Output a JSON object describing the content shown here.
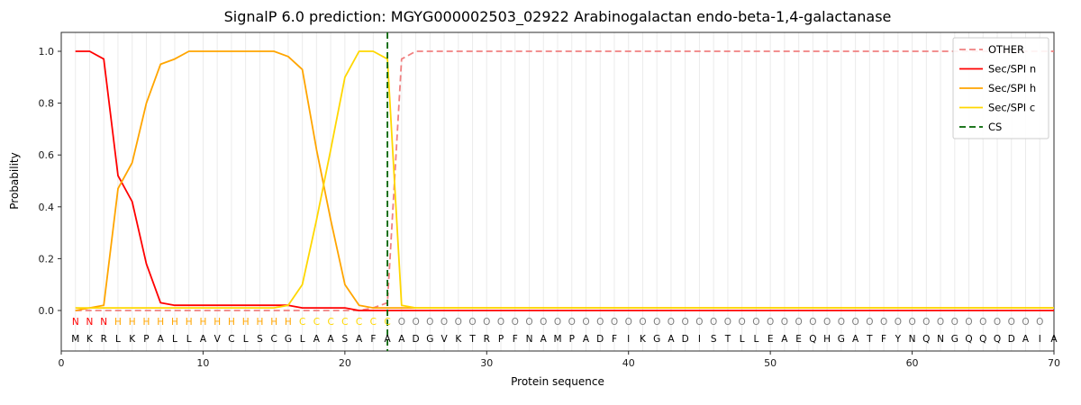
{
  "chart_data": {
    "type": "line",
    "title": "SignalP 6.0 prediction: MGYG000002503_02922 Arabinogalactan endo-beta-1,4-galactanase",
    "xlabel": "Protein sequence",
    "ylabel": "Probability",
    "xlim": [
      0,
      70
    ],
    "ylim": [
      -0.15,
      1.07
    ],
    "x_ticks": [
      0,
      10,
      20,
      30,
      40,
      50,
      60,
      70
    ],
    "y_ticks": [
      0.0,
      0.2,
      0.4,
      0.6,
      0.8,
      1.0
    ],
    "grid": "vertical-per-residue",
    "legend_position": "top-right",
    "colors": {
      "grid": "#ebebeb",
      "frame": "#2b2b2b",
      "tick_text": "#1a1a1a",
      "sequence_text": "#000000",
      "legend_border": "#cccccc"
    },
    "x": [
      1,
      2,
      3,
      4,
      5,
      6,
      7,
      8,
      9,
      10,
      11,
      12,
      13,
      14,
      15,
      16,
      17,
      18,
      19,
      20,
      21,
      22,
      23,
      24,
      25,
      26,
      27,
      28,
      29,
      30,
      31,
      32,
      33,
      34,
      35,
      36,
      37,
      38,
      39,
      40,
      41,
      42,
      43,
      44,
      45,
      46,
      47,
      48,
      49,
      50,
      51,
      52,
      53,
      54,
      55,
      56,
      57,
      58,
      59,
      60,
      61,
      62,
      63,
      64,
      65,
      66,
      67,
      68,
      69,
      70
    ],
    "series": [
      {
        "name": "OTHER",
        "color": "#f08080",
        "dash": "7 4",
        "values": [
          0,
          0,
          0,
          0,
          0,
          0,
          0,
          0,
          0,
          0,
          0,
          0,
          0,
          0,
          0,
          0,
          0,
          0,
          0,
          0,
          0,
          0.01,
          0.03,
          0.97,
          1,
          1,
          1,
          1,
          1,
          1,
          1,
          1,
          1,
          1,
          1,
          1,
          1,
          1,
          1,
          1,
          1,
          1,
          1,
          1,
          1,
          1,
          1,
          1,
          1,
          1,
          1,
          1,
          1,
          1,
          1,
          1,
          1,
          1,
          1,
          1,
          1,
          1,
          1,
          1,
          1,
          1,
          1,
          1,
          1,
          1
        ]
      },
      {
        "name": "Sec/SPI n",
        "color": "#ff0000",
        "dash": null,
        "values": [
          1,
          1,
          0.97,
          0.52,
          0.42,
          0.18,
          0.03,
          0.02,
          0.02,
          0.02,
          0.02,
          0.02,
          0.02,
          0.02,
          0.02,
          0.02,
          0.01,
          0.01,
          0.01,
          0.01,
          0,
          0,
          0,
          0,
          0,
          0,
          0,
          0,
          0,
          0,
          0,
          0,
          0,
          0,
          0,
          0,
          0,
          0,
          0,
          0,
          0,
          0,
          0,
          0,
          0,
          0,
          0,
          0,
          0,
          0,
          0,
          0,
          0,
          0,
          0,
          0,
          0,
          0,
          0,
          0,
          0,
          0,
          0,
          0,
          0,
          0,
          0,
          0,
          0,
          0
        ]
      },
      {
        "name": "Sec/SPI h",
        "color": "#ffa500",
        "dash": null,
        "values": [
          0,
          0.01,
          0.02,
          0.47,
          0.57,
          0.8,
          0.95,
          0.97,
          1,
          1,
          1,
          1,
          1,
          1,
          1,
          0.98,
          0.93,
          0.62,
          0.35,
          0.1,
          0.02,
          0.01,
          0.01,
          0.01,
          0.01,
          0.01,
          0.01,
          0.01,
          0.01,
          0.01,
          0.01,
          0.01,
          0.01,
          0.01,
          0.01,
          0.01,
          0.01,
          0.01,
          0.01,
          0.01,
          0.01,
          0.01,
          0.01,
          0.01,
          0.01,
          0.01,
          0.01,
          0.01,
          0.01,
          0.01,
          0.01,
          0.01,
          0.01,
          0.01,
          0.01,
          0.01,
          0.01,
          0.01,
          0.01,
          0.01,
          0.01,
          0.01,
          0.01,
          0.01,
          0.01,
          0.01,
          0.01,
          0.01,
          0.01,
          0.01
        ]
      },
      {
        "name": "Sec/SPI c",
        "color": "#ffd700",
        "dash": null,
        "values": [
          0.01,
          0.01,
          0.01,
          0.01,
          0.01,
          0.01,
          0.01,
          0.01,
          0.01,
          0.01,
          0.01,
          0.01,
          0.01,
          0.01,
          0.01,
          0.02,
          0.1,
          0.35,
          0.62,
          0.9,
          1,
          1,
          0.97,
          0.02,
          0.01,
          0.01,
          0.01,
          0.01,
          0.01,
          0.01,
          0.01,
          0.01,
          0.01,
          0.01,
          0.01,
          0.01,
          0.01,
          0.01,
          0.01,
          0.01,
          0.01,
          0.01,
          0.01,
          0.01,
          0.01,
          0.01,
          0.01,
          0.01,
          0.01,
          0.01,
          0.01,
          0.01,
          0.01,
          0.01,
          0.01,
          0.01,
          0.01,
          0.01,
          0.01,
          0.01,
          0.01,
          0.01,
          0.01,
          0.01,
          0.01,
          0.01,
          0.01,
          0.01,
          0.01,
          0.01
        ]
      }
    ],
    "cs_line": {
      "name": "CS",
      "x": 23,
      "color": "#006400",
      "dash": "7 4"
    },
    "sequence": "MKRLKPALLAVCLSCGLAASAFAADGVKTRPFNAMPADFIKGADISTLLEAEQHGATFYNQNGQQQDAIA",
    "region_labels": "NNNHHHHHHHHHHHHHCCCCCCCOOOOOOOOOOOOOOOOOOOOOOOOOOOOOOOOOOOOOOOOOOOOOO",
    "region_colors": {
      "N": "#ff0000",
      "H": "#ffa500",
      "C": "#ffd700",
      "O": "#7f7f7f"
    }
  }
}
